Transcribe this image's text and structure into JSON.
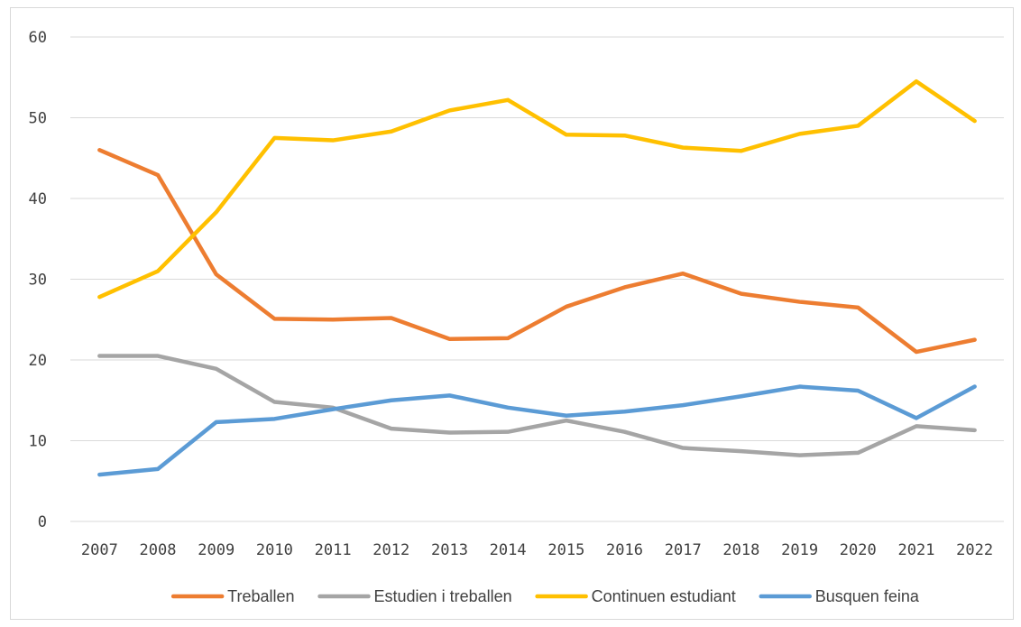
{
  "chart_data": {
    "type": "line",
    "title": "",
    "xlabel": "",
    "ylabel": "",
    "ylim": [
      0,
      60
    ],
    "y_ticks": [
      "0",
      "10",
      "20",
      "30",
      "40",
      "50",
      "60"
    ],
    "grid": true,
    "legend_position": "bottom",
    "categories": [
      "2007",
      "2008",
      "2009",
      "2010",
      "2011",
      "2012",
      "2013",
      "2014",
      "2015",
      "2016",
      "2017",
      "2018",
      "2019",
      "2020",
      "2021",
      "2022"
    ],
    "series": [
      {
        "name": "Treballen",
        "color": "#ED7D31",
        "values": [
          46,
          42.9,
          30.6,
          25.1,
          25.0,
          25.2,
          22.6,
          22.7,
          26.6,
          29.0,
          30.7,
          28.2,
          27.2,
          26.5,
          21.0,
          22.5
        ]
      },
      {
        "name": "Estudien i treballen",
        "color": "#A5A5A5",
        "values": [
          20.5,
          20.5,
          18.9,
          14.8,
          14.1,
          11.5,
          11.0,
          11.1,
          12.5,
          11.1,
          9.1,
          8.7,
          8.2,
          8.5,
          11.8,
          11.3
        ]
      },
      {
        "name": "Continuen estudiant",
        "color": "#FFC000",
        "values": [
          27.8,
          31.0,
          38.3,
          47.5,
          47.2,
          48.3,
          50.9,
          52.2,
          47.9,
          47.8,
          46.3,
          45.9,
          48.0,
          49.0,
          54.5,
          49.6
        ]
      },
      {
        "name": "Busquen feina",
        "color": "#5B9BD5",
        "values": [
          5.8,
          6.5,
          12.3,
          12.7,
          13.9,
          15.0,
          15.6,
          14.1,
          13.1,
          13.6,
          14.4,
          15.5,
          16.7,
          16.2,
          12.8,
          16.7
        ]
      }
    ]
  }
}
